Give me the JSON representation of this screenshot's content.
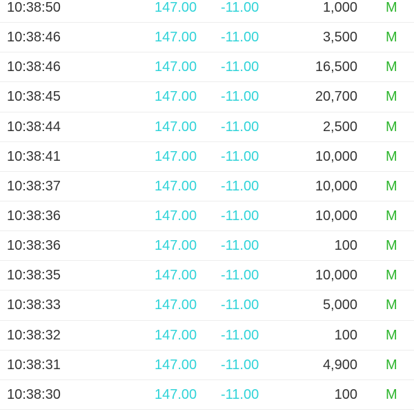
{
  "colors": {
    "price": "#2fd3d8",
    "change": "#2fd3d8",
    "flag": "#2db52d",
    "text": "#333333"
  },
  "trades": [
    {
      "time": "10:38:50",
      "price": "147.00",
      "change": "-11.00",
      "volume": "1,000",
      "flag": "M"
    },
    {
      "time": "10:38:46",
      "price": "147.00",
      "change": "-11.00",
      "volume": "3,500",
      "flag": "M"
    },
    {
      "time": "10:38:46",
      "price": "147.00",
      "change": "-11.00",
      "volume": "16,500",
      "flag": "M"
    },
    {
      "time": "10:38:45",
      "price": "147.00",
      "change": "-11.00",
      "volume": "20,700",
      "flag": "M"
    },
    {
      "time": "10:38:44",
      "price": "147.00",
      "change": "-11.00",
      "volume": "2,500",
      "flag": "M"
    },
    {
      "time": "10:38:41",
      "price": "147.00",
      "change": "-11.00",
      "volume": "10,000",
      "flag": "M"
    },
    {
      "time": "10:38:37",
      "price": "147.00",
      "change": "-11.00",
      "volume": "10,000",
      "flag": "M"
    },
    {
      "time": "10:38:36",
      "price": "147.00",
      "change": "-11.00",
      "volume": "10,000",
      "flag": "M"
    },
    {
      "time": "10:38:36",
      "price": "147.00",
      "change": "-11.00",
      "volume": "100",
      "flag": "M"
    },
    {
      "time": "10:38:35",
      "price": "147.00",
      "change": "-11.00",
      "volume": "10,000",
      "flag": "M"
    },
    {
      "time": "10:38:33",
      "price": "147.00",
      "change": "-11.00",
      "volume": "5,000",
      "flag": "M"
    },
    {
      "time": "10:38:32",
      "price": "147.00",
      "change": "-11.00",
      "volume": "100",
      "flag": "M"
    },
    {
      "time": "10:38:31",
      "price": "147.00",
      "change": "-11.00",
      "volume": "4,900",
      "flag": "M"
    },
    {
      "time": "10:38:30",
      "price": "147.00",
      "change": "-11.00",
      "volume": "100",
      "flag": "M"
    }
  ]
}
